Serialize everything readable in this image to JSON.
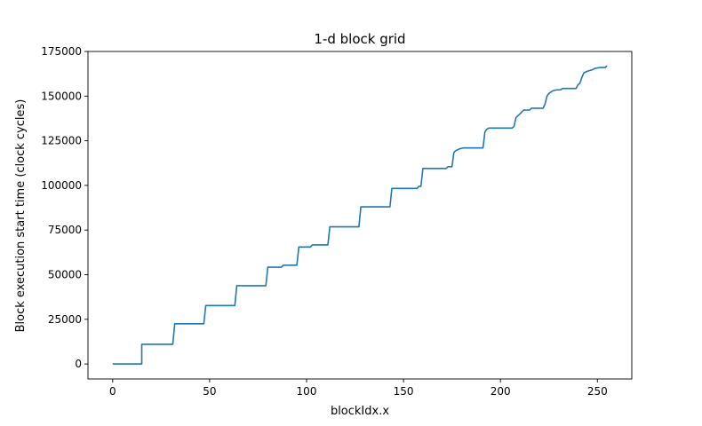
{
  "chart_data": {
    "type": "line",
    "title": "1-d block grid",
    "xlabel": "blockIdx.x",
    "ylabel": "Block execution start time (clock cycles)",
    "xlim": [
      -12.75,
      267.75
    ],
    "ylim": [
      -8400,
      175000
    ],
    "xticks": [
      0,
      50,
      100,
      150,
      200,
      250
    ],
    "yticks": [
      0,
      25000,
      50000,
      75000,
      100000,
      125000,
      150000,
      175000
    ],
    "grid": false,
    "series": [
      {
        "color": "#1f77b4",
        "x": [
          0,
          15,
          15,
          31,
          32,
          47,
          48,
          63,
          64,
          79,
          80,
          87,
          88,
          95,
          96,
          102,
          103,
          111,
          112,
          127,
          128,
          143,
          144,
          157,
          158,
          159,
          160,
          172,
          173,
          175,
          176,
          177,
          179,
          181,
          191,
          192,
          193,
          194,
          206,
          207,
          208,
          210,
          212,
          215,
          216,
          222,
          223,
          224,
          225,
          227,
          229,
          231,
          232,
          239,
          240,
          241,
          242,
          243,
          245,
          247,
          249,
          251,
          253,
          254,
          255
        ],
        "y": [
          0,
          0,
          11000,
          11000,
          22500,
          22500,
          32700,
          32700,
          43800,
          43800,
          54200,
          54200,
          55300,
          55300,
          65500,
          65500,
          66700,
          66700,
          76800,
          76800,
          88000,
          88000,
          98300,
          98300,
          99500,
          99500,
          109500,
          109500,
          110500,
          110500,
          118500,
          119500,
          120500,
          121000,
          121000,
          130000,
          131500,
          132100,
          132100,
          133000,
          138000,
          140000,
          142200,
          142200,
          143200,
          143200,
          145500,
          150000,
          151500,
          153000,
          153500,
          153500,
          154300,
          154300,
          156300,
          157300,
          160500,
          163000,
          164000,
          164600,
          165600,
          166000,
          166000,
          166000,
          167000
        ]
      }
    ]
  }
}
